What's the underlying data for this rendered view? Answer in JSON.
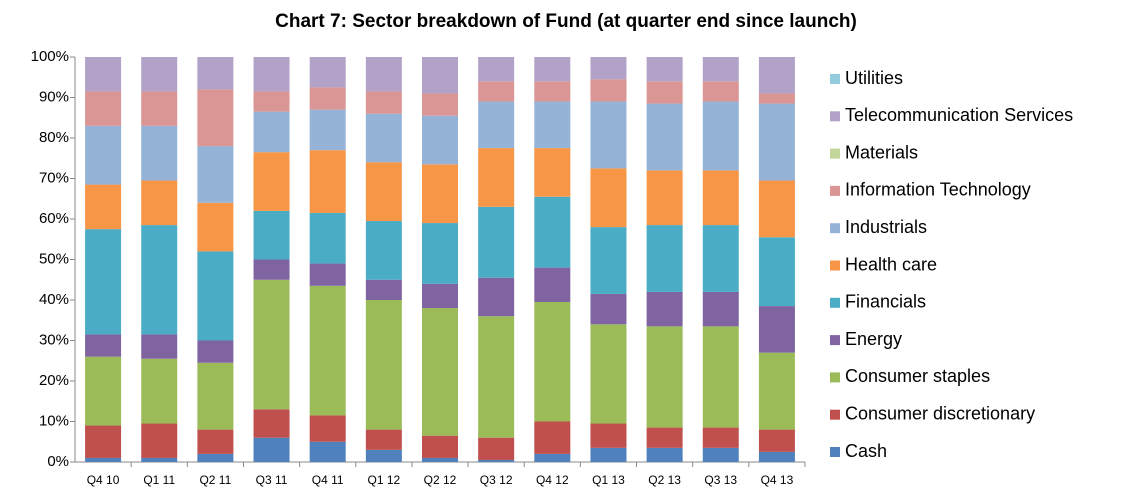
{
  "chart_data": {
    "type": "stacked_bar",
    "title": "Chart 7: Sector breakdown of Fund (at quarter end since launch)",
    "categories": [
      "Q4 10",
      "Q1 11",
      "Q2 11",
      "Q3 11",
      "Q4 11",
      "Q1 12",
      "Q2 12",
      "Q3 12",
      "Q4 12",
      "Q1 13",
      "Q2 13",
      "Q3 13",
      "Q4 13"
    ],
    "series": [
      {
        "name": "Cash",
        "color": "#4f81bd",
        "values": [
          1,
          1,
          2,
          6,
          5,
          3,
          1,
          0.5,
          2,
          3.5,
          3.5,
          3.5,
          2.5
        ]
      },
      {
        "name": "Consumer discretionary",
        "color": "#c0504d",
        "values": [
          8,
          8.5,
          6,
          7,
          6.5,
          5,
          5.5,
          5.5,
          8,
          6,
          5,
          5,
          5.5
        ]
      },
      {
        "name": "Consumer staples",
        "color": "#9bbb59",
        "values": [
          17,
          16,
          16.5,
          32,
          32,
          32,
          31.5,
          30,
          29.5,
          24.5,
          25,
          25,
          19
        ]
      },
      {
        "name": "Energy",
        "color": "#8064a2",
        "values": [
          5.5,
          6,
          5.5,
          5,
          5.5,
          5,
          6,
          9.5,
          8.5,
          7.5,
          8.5,
          8.5,
          11.5
        ]
      },
      {
        "name": "Financials",
        "color": "#4bacc6",
        "values": [
          26,
          27,
          22,
          12,
          12.5,
          14.5,
          15,
          17.5,
          17.5,
          16.5,
          16.5,
          16.5,
          17
        ]
      },
      {
        "name": "Health care",
        "color": "#f79646",
        "values": [
          11,
          11,
          12,
          14.5,
          15.5,
          14.5,
          14.5,
          14.5,
          12,
          14.5,
          13.5,
          13.5,
          14
        ]
      },
      {
        "name": "Industrials",
        "color": "#95b3d7",
        "values": [
          14.5,
          13.5,
          14,
          10,
          10,
          12,
          12,
          11.5,
          11.5,
          16.5,
          16.5,
          17,
          19
        ]
      },
      {
        "name": "Information Technology",
        "color": "#d99694",
        "values": [
          8.5,
          8.5,
          14,
          5,
          5.5,
          5.5,
          5.5,
          5,
          5,
          5.5,
          5.5,
          5,
          2.5
        ]
      },
      {
        "name": "Materials",
        "color": "#c3d69b",
        "values": [
          0,
          0,
          0,
          0,
          0,
          0,
          0,
          0,
          0,
          0,
          0,
          0,
          0
        ]
      },
      {
        "name": "Telecommunication Services",
        "color": "#b3a2c7",
        "values": [
          8.5,
          8.5,
          8,
          8.5,
          7.5,
          8.5,
          9,
          6,
          6,
          5.5,
          6,
          6,
          9
        ]
      },
      {
        "name": "Utilities",
        "color": "#93cddd",
        "values": [
          0,
          0,
          0,
          0,
          0,
          0,
          0,
          0,
          0,
          0,
          0,
          0,
          0
        ]
      }
    ],
    "ylim": [
      0,
      100
    ],
    "yticks": [
      {
        "value": 0,
        "label": "0%"
      },
      {
        "value": 10,
        "label": "10%"
      },
      {
        "value": 20,
        "label": "20%"
      },
      {
        "value": 30,
        "label": "30%"
      },
      {
        "value": 40,
        "label": "40%"
      },
      {
        "value": 50,
        "label": "50%"
      },
      {
        "value": 60,
        "label": "60%"
      },
      {
        "value": 70,
        "label": "70%"
      },
      {
        "value": 80,
        "label": "80%"
      },
      {
        "value": 90,
        "label": "90%"
      },
      {
        "value": 100,
        "label": "100%"
      }
    ],
    "legend": "right"
  }
}
